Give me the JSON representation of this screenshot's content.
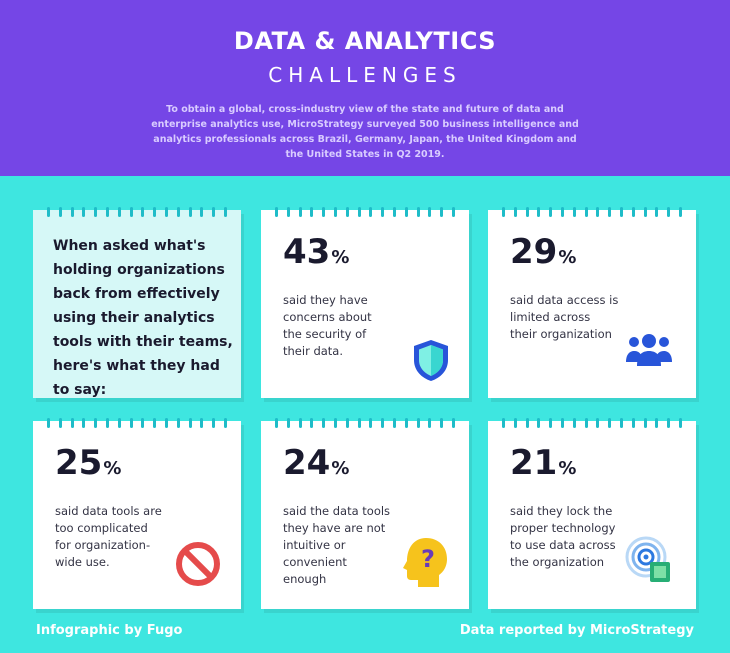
{
  "header": {
    "title": "DATA & ANALYTICS",
    "subtitle": "CHALLENGES",
    "intro": "To obtain a global, cross-industry view of the state and future of data and enterprise analytics use, MicroStrategy surveyed 500 business intelligence and analytics professionals across Brazil, Germany, Japan, the United Kingdom and the United States in Q2 2019."
  },
  "lead": {
    "text": "When asked what's holding organizations back from effectively using their analytics tools with their teams, here's what they had to say:"
  },
  "stats": [
    {
      "value": "43",
      "unit": "%",
      "text": "said they have concerns about the security of their data.",
      "icon": "shield-icon"
    },
    {
      "value": "29",
      "unit": "%",
      "text": "said data access is limited across their organization",
      "icon": "users-icon"
    },
    {
      "value": "25",
      "unit": "%",
      "text": "said data tools are too complicated for organization-wide use.",
      "icon": "prohibited-icon"
    },
    {
      "value": "24",
      "unit": "%",
      "text": "said the data tools they have are not intuitive or convenient enough",
      "icon": "confused-head-icon"
    },
    {
      "value": "21",
      "unit": "%",
      "text": "said they lock the proper technology to use data across the organization",
      "icon": "signal-chip-icon"
    }
  ],
  "footer": {
    "left": "Infographic by Fugo",
    "right": "Data reported by MicroStrategy"
  },
  "colors": {
    "header_bg": "#7546e6",
    "page_bg": "#3ee6e0",
    "lead_card_bg": "#d6f8f7",
    "ring": "#1fbcc8"
  }
}
